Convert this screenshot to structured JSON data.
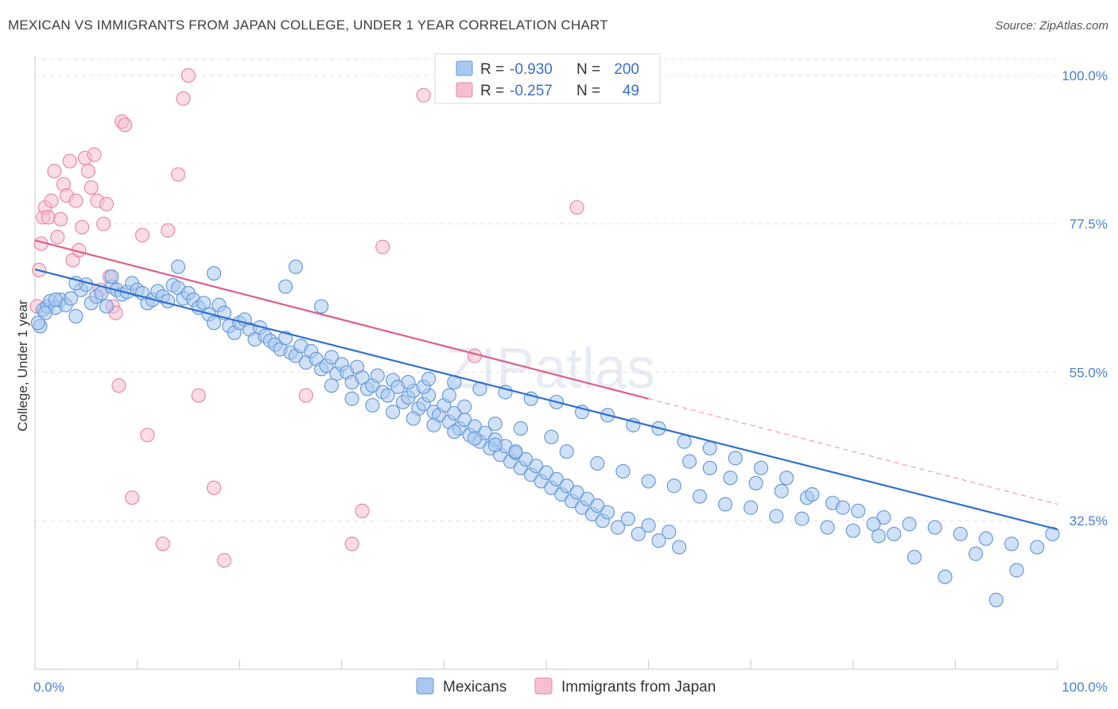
{
  "header": {
    "title": "MEXICAN VS IMMIGRANTS FROM JAPAN COLLEGE, UNDER 1 YEAR CORRELATION CHART",
    "source": "Source: ZipAtlas.com"
  },
  "watermark": "ZIPatlas",
  "legend_box": {
    "rows": [
      {
        "r_label": "R =",
        "r_value": "-0.930",
        "n_label": "N =",
        "n_value": "200"
      },
      {
        "r_label": "R =",
        "r_value": "-0.257",
        "n_label": "N =",
        "n_value": "49"
      }
    ]
  },
  "bottom_legend": {
    "items": [
      {
        "label": "Mexicans"
      },
      {
        "label": "Immigrants from Japan"
      }
    ]
  },
  "colors": {
    "blue_fill": "#a9c8f0",
    "blue_stroke": "#6a9ad8",
    "blue_line": "#2f6fd0",
    "pink_fill": "#f6bfd0",
    "pink_stroke": "#e88aa8",
    "pink_line": "#e05c8a",
    "grid": "#e3e3e3",
    "axis_label": "#4a7fcf"
  },
  "chart_data": {
    "type": "scatter",
    "xlabel": "",
    "ylabel": "College, Under 1 year",
    "x_ticks": [
      "0.0%",
      "100.0%"
    ],
    "y_ticks": [
      "100.0%",
      "77.5%",
      "55.0%",
      "32.5%"
    ],
    "y_tick_values": [
      100.0,
      77.5,
      55.0,
      32.5
    ],
    "xlim": [
      0,
      100
    ],
    "ylim": [
      10,
      103
    ],
    "grid": true,
    "series": [
      {
        "name": "Mexicans",
        "color": "#a9c8f0",
        "trend": {
          "x0": 0,
          "y0": 70.6,
          "x1": 100,
          "y1": 31.2
        },
        "points": [
          [
            0.5,
            62.0
          ],
          [
            0.8,
            64.5
          ],
          [
            1.2,
            65.0
          ],
          [
            1.5,
            65.8
          ],
          [
            2.0,
            64.8
          ],
          [
            2.5,
            66.0
          ],
          [
            3.0,
            65.2
          ],
          [
            3.5,
            66.2
          ],
          [
            4.0,
            63.5
          ],
          [
            4.5,
            67.5
          ],
          [
            5.0,
            68.3
          ],
          [
            5.5,
            65.5
          ],
          [
            6.0,
            66.5
          ],
          [
            6.5,
            67.0
          ],
          [
            7.0,
            65.0
          ],
          [
            7.5,
            68.0
          ],
          [
            8.0,
            67.5
          ],
          [
            8.5,
            66.8
          ],
          [
            9.0,
            67.2
          ],
          [
            9.5,
            68.5
          ],
          [
            10.0,
            67.5
          ],
          [
            10.5,
            67.0
          ],
          [
            11.0,
            65.5
          ],
          [
            11.5,
            66.0
          ],
          [
            12.0,
            67.3
          ],
          [
            12.5,
            66.5
          ],
          [
            13.0,
            65.8
          ],
          [
            13.5,
            68.2
          ],
          [
            14.0,
            67.8
          ],
          [
            14.5,
            66.2
          ],
          [
            15.0,
            67.0
          ],
          [
            15.5,
            66.0
          ],
          [
            16.0,
            64.8
          ],
          [
            16.5,
            65.5
          ],
          [
            17.0,
            63.8
          ],
          [
            17.5,
            62.5
          ],
          [
            18.0,
            65.2
          ],
          [
            18.5,
            64.0
          ],
          [
            19.0,
            62.0
          ],
          [
            19.5,
            61.0
          ],
          [
            20.0,
            62.5
          ],
          [
            20.5,
            63.0
          ],
          [
            21.0,
            61.5
          ],
          [
            21.5,
            60.0
          ],
          [
            22.0,
            61.8
          ],
          [
            22.5,
            60.5
          ],
          [
            23.0,
            59.8
          ],
          [
            23.5,
            59.2
          ],
          [
            24.0,
            58.5
          ],
          [
            24.5,
            60.2
          ],
          [
            25.0,
            58.0
          ],
          [
            25.5,
            57.5
          ],
          [
            26.0,
            59.0
          ],
          [
            26.5,
            56.5
          ],
          [
            27.0,
            58.2
          ],
          [
            27.5,
            57.0
          ],
          [
            28.0,
            55.5
          ],
          [
            28.5,
            56.0
          ],
          [
            29.0,
            57.3
          ],
          [
            29.5,
            54.8
          ],
          [
            30.0,
            56.2
          ],
          [
            30.5,
            55.0
          ],
          [
            31.0,
            53.5
          ],
          [
            31.5,
            55.8
          ],
          [
            32.0,
            54.2
          ],
          [
            32.5,
            52.5
          ],
          [
            33.0,
            53.0
          ],
          [
            33.5,
            54.5
          ],
          [
            34.0,
            52.0
          ],
          [
            34.5,
            51.5
          ],
          [
            35.0,
            53.8
          ],
          [
            35.5,
            52.8
          ],
          [
            36.0,
            50.5
          ],
          [
            36.5,
            51.2
          ],
          [
            37.0,
            52.2
          ],
          [
            37.5,
            49.5
          ],
          [
            38.0,
            50.2
          ],
          [
            38.5,
            51.5
          ],
          [
            39.0,
            49.0
          ],
          [
            39.5,
            48.5
          ],
          [
            40.0,
            50.0
          ],
          [
            40.5,
            47.5
          ],
          [
            41.0,
            48.8
          ],
          [
            41.5,
            46.5
          ],
          [
            42.0,
            47.8
          ],
          [
            42.5,
            45.5
          ],
          [
            43.0,
            46.8
          ],
          [
            43.5,
            44.5
          ],
          [
            44.0,
            45.8
          ],
          [
            44.5,
            43.5
          ],
          [
            45.0,
            44.8
          ],
          [
            45.5,
            42.5
          ],
          [
            46.0,
            43.8
          ],
          [
            46.5,
            41.5
          ],
          [
            47.0,
            42.8
          ],
          [
            47.5,
            40.5
          ],
          [
            48.0,
            41.8
          ],
          [
            48.5,
            39.5
          ],
          [
            49.0,
            40.8
          ],
          [
            49.5,
            38.5
          ],
          [
            50.0,
            39.8
          ],
          [
            50.5,
            37.5
          ],
          [
            51.0,
            38.8
          ],
          [
            51.5,
            36.5
          ],
          [
            52.0,
            37.8
          ],
          [
            52.5,
            35.5
          ],
          [
            53.0,
            36.8
          ],
          [
            53.5,
            34.5
          ],
          [
            54.0,
            35.8
          ],
          [
            54.5,
            33.5
          ],
          [
            55.0,
            34.8
          ],
          [
            55.5,
            32.5
          ],
          [
            56.0,
            33.8
          ],
          [
            57.0,
            31.5
          ],
          [
            58.0,
            32.8
          ],
          [
            59.0,
            30.5
          ],
          [
            60.0,
            31.8
          ],
          [
            61.0,
            29.5
          ],
          [
            62.0,
            30.8
          ],
          [
            63.0,
            28.5
          ],
          [
            36.5,
            53.5
          ],
          [
            38.0,
            52.8
          ],
          [
            40.5,
            51.5
          ],
          [
            42.0,
            49.8
          ],
          [
            45.0,
            47.2
          ],
          [
            47.5,
            46.5
          ],
          [
            50.5,
            45.2
          ],
          [
            52.0,
            43.0
          ],
          [
            55.0,
            41.2
          ],
          [
            57.5,
            40.0
          ],
          [
            60.0,
            38.5
          ],
          [
            62.5,
            37.8
          ],
          [
            65.0,
            36.2
          ],
          [
            67.5,
            35.0
          ],
          [
            70.0,
            34.5
          ],
          [
            72.5,
            33.2
          ],
          [
            75.0,
            32.8
          ],
          [
            77.5,
            31.5
          ],
          [
            80.0,
            31.0
          ],
          [
            82.5,
            30.2
          ],
          [
            64.0,
            41.5
          ],
          [
            66.0,
            40.5
          ],
          [
            68.0,
            39.0
          ],
          [
            70.5,
            38.2
          ],
          [
            73.0,
            37.0
          ],
          [
            75.5,
            36.0
          ],
          [
            78.0,
            35.2
          ],
          [
            80.5,
            34.0
          ],
          [
            83.0,
            33.0
          ],
          [
            85.5,
            32.0
          ],
          [
            88.0,
            31.5
          ],
          [
            90.5,
            30.5
          ],
          [
            93.0,
            29.8
          ],
          [
            95.5,
            29.0
          ],
          [
            98.0,
            28.5
          ],
          [
            99.5,
            30.5
          ],
          [
            96.0,
            25.0
          ],
          [
            94.0,
            20.5
          ],
          [
            92.0,
            27.5
          ],
          [
            89.0,
            24.0
          ],
          [
            86.0,
            27.0
          ],
          [
            84.0,
            30.5
          ],
          [
            82.0,
            32.0
          ],
          [
            79.0,
            34.5
          ],
          [
            76.0,
            36.5
          ],
          [
            73.5,
            39.0
          ],
          [
            71.0,
            40.5
          ],
          [
            68.5,
            42.0
          ],
          [
            66.0,
            43.5
          ],
          [
            63.5,
            44.5
          ],
          [
            61.0,
            46.5
          ],
          [
            58.5,
            47.0
          ],
          [
            56.0,
            48.5
          ],
          [
            53.5,
            49.0
          ],
          [
            51.0,
            50.5
          ],
          [
            48.5,
            51.0
          ],
          [
            46.0,
            52.0
          ],
          [
            43.5,
            52.5
          ],
          [
            41.0,
            53.5
          ],
          [
            38.5,
            54.0
          ],
          [
            29.0,
            53.0
          ],
          [
            31.0,
            51.0
          ],
          [
            33.0,
            50.0
          ],
          [
            35.0,
            49.0
          ],
          [
            37.0,
            48.0
          ],
          [
            39.0,
            47.0
          ],
          [
            41.0,
            46.0
          ],
          [
            43.0,
            45.0
          ],
          [
            45.0,
            44.0
          ],
          [
            47.0,
            43.0
          ],
          [
            14.0,
            71.0
          ],
          [
            17.5,
            70.0
          ],
          [
            25.5,
            71.0
          ],
          [
            24.5,
            68.0
          ],
          [
            28.0,
            65.0
          ],
          [
            7.5,
            69.5
          ],
          [
            4.0,
            68.5
          ],
          [
            2.0,
            66.0
          ],
          [
            1.0,
            64.0
          ],
          [
            0.3,
            62.5
          ]
        ]
      },
      {
        "name": "Immigrants from Japan",
        "color": "#f6bfd0",
        "trend": {
          "x0": 0,
          "y0": 75.0,
          "x1": 60,
          "y1": 51.0
        },
        "trend_dashed": {
          "x0": 60,
          "y0": 51.0,
          "x1": 100,
          "y1": 35.0
        },
        "points": [
          [
            0.2,
            65.0
          ],
          [
            0.4,
            70.5
          ],
          [
            0.6,
            74.5
          ],
          [
            0.8,
            78.5
          ],
          [
            1.0,
            80.0
          ],
          [
            1.3,
            78.5
          ],
          [
            1.6,
            81.0
          ],
          [
            1.9,
            85.5
          ],
          [
            2.2,
            75.5
          ],
          [
            2.5,
            78.2
          ],
          [
            2.8,
            83.5
          ],
          [
            3.1,
            81.8
          ],
          [
            3.4,
            87.0
          ],
          [
            3.7,
            72.0
          ],
          [
            4.0,
            81.0
          ],
          [
            4.3,
            73.5
          ],
          [
            4.6,
            77.0
          ],
          [
            4.9,
            87.5
          ],
          [
            5.2,
            85.5
          ],
          [
            5.5,
            83.0
          ],
          [
            5.8,
            88.0
          ],
          [
            6.1,
            81.0
          ],
          [
            6.4,
            67.5
          ],
          [
            6.7,
            77.5
          ],
          [
            7.0,
            80.5
          ],
          [
            7.3,
            69.5
          ],
          [
            7.6,
            65.0
          ],
          [
            7.9,
            64.0
          ],
          [
            8.2,
            53.0
          ],
          [
            8.5,
            93.0
          ],
          [
            8.8,
            92.5
          ],
          [
            9.5,
            36.0
          ],
          [
            10.5,
            75.8
          ],
          [
            11.0,
            45.5
          ],
          [
            12.5,
            29.0
          ],
          [
            13.0,
            76.5
          ],
          [
            14.0,
            85.0
          ],
          [
            14.5,
            96.5
          ],
          [
            15.0,
            100.0
          ],
          [
            16.0,
            51.5
          ],
          [
            17.5,
            37.5
          ],
          [
            18.5,
            26.5
          ],
          [
            26.5,
            51.5
          ],
          [
            31.0,
            29.0
          ],
          [
            32.0,
            34.0
          ],
          [
            34.0,
            74.0
          ],
          [
            38.0,
            97.0
          ],
          [
            43.0,
            57.5
          ],
          [
            53.0,
            80.0
          ]
        ]
      }
    ]
  }
}
